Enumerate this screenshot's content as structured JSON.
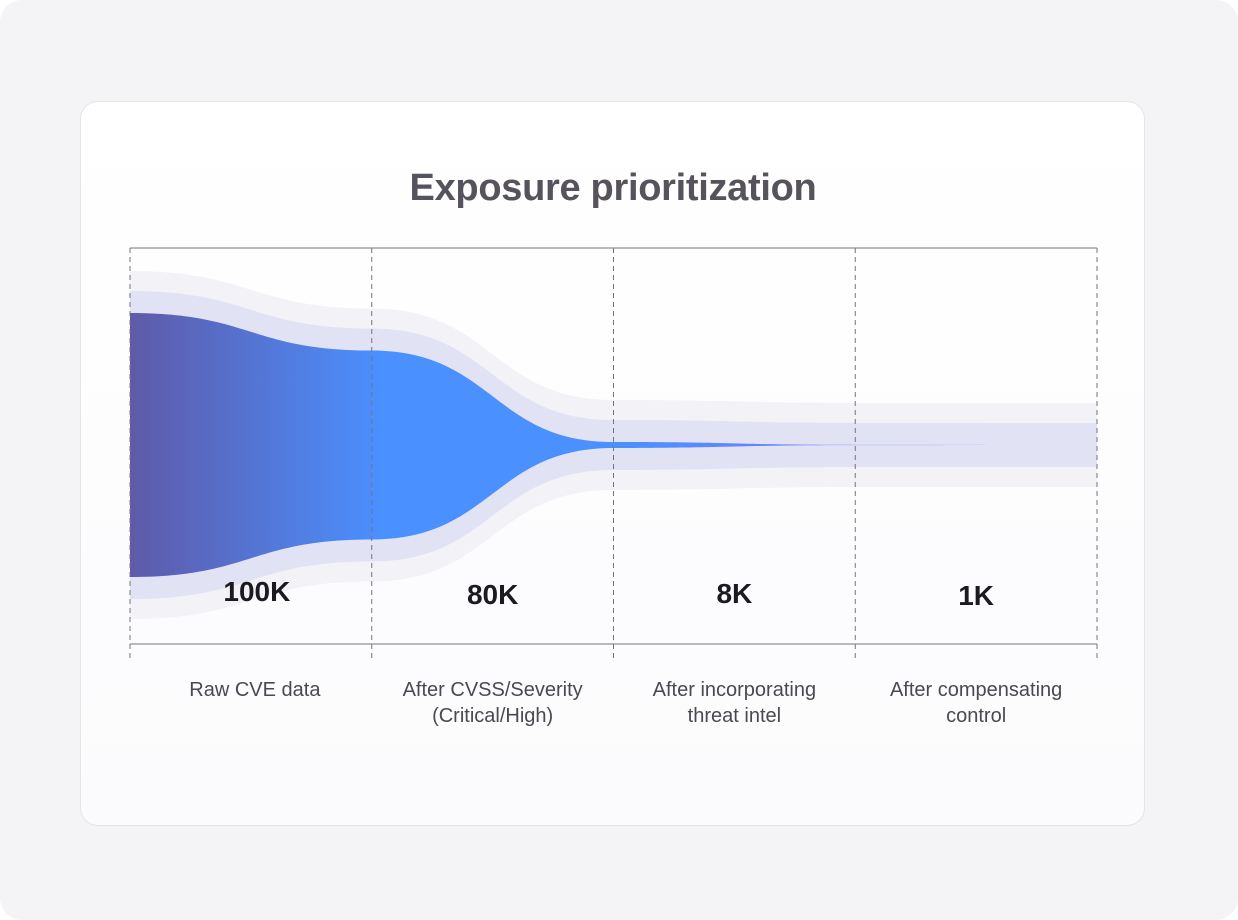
{
  "chart_data": {
    "type": "area",
    "title": "Exposure prioritization",
    "categories": [
      [
        "Raw CVE data"
      ],
      [
        "After CVSS/Severity",
        "(Critical/High)"
      ],
      [
        "After incorporating",
        "threat intel"
      ],
      [
        "After compensating",
        "control"
      ]
    ],
    "values": [
      100000,
      80000,
      8000,
      1000
    ],
    "value_labels": [
      "100K",
      "80K",
      "8K",
      "1K"
    ],
    "grid": true,
    "legend": "none"
  },
  "colors": {
    "gradient_start": "#5f5aa8",
    "gradient_mid": "#4a90ff",
    "gradient_end": "#a56cf5",
    "halo_inner": "#e1e3f5",
    "halo_outer": "#f3f2f6",
    "gridline": "#77737c",
    "title": "#57535d"
  }
}
